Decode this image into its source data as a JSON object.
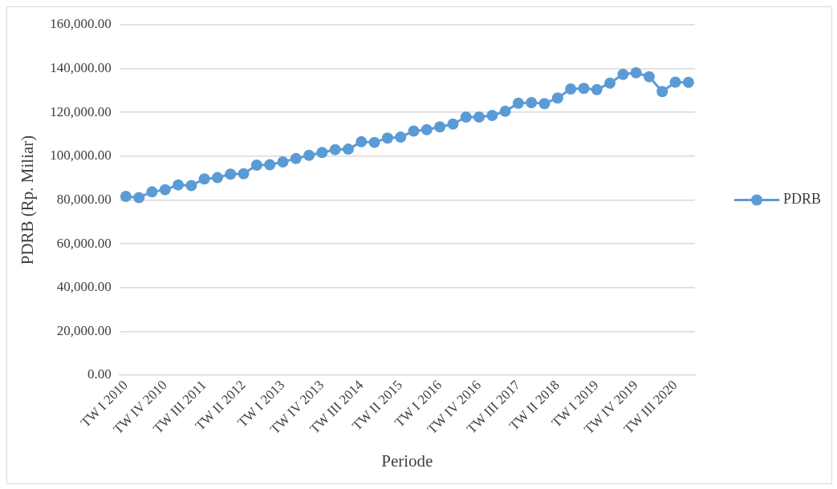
{
  "chart_data": {
    "type": "line",
    "xlabel": "Periode",
    "ylabel": "PDRB (Rp. Miliar)",
    "categories": [
      "TW I 2010",
      null,
      null,
      "TW IV 2010",
      null,
      null,
      "TW III 2011",
      null,
      null,
      "TW II 2012",
      null,
      null,
      "TW I 2013",
      null,
      null,
      "TW IV 2013",
      null,
      null,
      "TW III 2014",
      null,
      null,
      "TW II 2015",
      null,
      null,
      "TW I 2016",
      null,
      null,
      "TW IV 2016",
      null,
      null,
      "TW III 2017",
      null,
      null,
      "TW II 2018",
      null,
      null,
      "TW I 2019",
      null,
      null,
      "TW IV 2019",
      null,
      null,
      "TW III 2020",
      null
    ],
    "series": [
      {
        "name": "PDRB",
        "color": "#5b9bd5",
        "values": [
          81650,
          81100,
          83700,
          84700,
          86900,
          86600,
          89600,
          90200,
          91800,
          92000,
          95900,
          96100,
          97400,
          98900,
          100400,
          101700,
          103000,
          103200,
          106600,
          106300,
          108300,
          108700,
          111500,
          112100,
          113400,
          114700,
          117900,
          117900,
          118600,
          120500,
          124200,
          124500,
          124000,
          126600,
          130700,
          131000,
          130400,
          133400,
          137400,
          138100,
          136300,
          129500,
          133800,
          133700
        ]
      }
    ],
    "ylim": [
      0,
      160000
    ],
    "yticks": [
      {
        "value": 0,
        "label": "0.00"
      },
      {
        "value": 20000,
        "label": "20,000.00"
      },
      {
        "value": 40000,
        "label": "40,000.00"
      },
      {
        "value": 60000,
        "label": "60,000.00"
      },
      {
        "value": 80000,
        "label": "80,000.00"
      },
      {
        "value": 100000,
        "label": "100,000.00"
      },
      {
        "value": 120000,
        "label": "120,000.00"
      },
      {
        "value": 140000,
        "label": "140,000.00"
      },
      {
        "value": 160000,
        "label": "160,000.00"
      }
    ],
    "grid": "y",
    "legend": "right",
    "marker": "circle",
    "line_style": "solid"
  }
}
